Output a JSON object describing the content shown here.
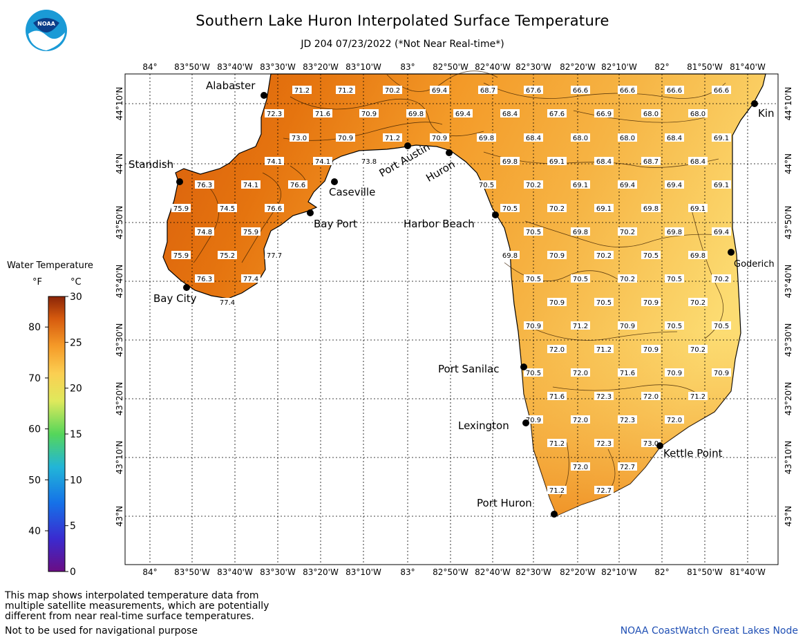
{
  "header": {
    "title": "Southern Lake Huron Interpolated Surface Temperature",
    "subtitle": "JD 204 07/23/2022 (*Not Near Real-time*)",
    "logo_text": "NOAA"
  },
  "legend": {
    "title": "Water Temperature",
    "unit_f": "°F",
    "unit_c": "°C",
    "f_ticks": [
      "80",
      "70",
      "60",
      "50",
      "40"
    ],
    "c_ticks": [
      "30",
      "25",
      "20",
      "15",
      "10",
      "5",
      "0"
    ],
    "range_c": [
      0,
      30
    ]
  },
  "axes": {
    "lon_labels": [
      "84°",
      "83°50'W",
      "83°40'W",
      "83°30'W",
      "83°20'W",
      "83°10'W",
      "83°",
      "82°50'W",
      "82°40'W",
      "82°30'W",
      "82°20'W",
      "82°10'W",
      "82°",
      "81°50'W",
      "81°40'W"
    ],
    "lat_labels": [
      "44°10'N",
      "44°N",
      "43°50'N",
      "43°40'N",
      "43°30'N",
      "43°20'N",
      "43°10'N",
      "43°N"
    ]
  },
  "places": [
    "Alabaster",
    "Standish",
    "Caseville",
    "Bay Port",
    "Bay City",
    "Port Austin",
    "Huron",
    "Harbor Beach",
    "Port Sanilac",
    "Lexington",
    "Port Huron",
    "Kettle Point",
    "Goderich",
    "Kin"
  ],
  "temperatures": [
    "71.2",
    "71.2",
    "70.2",
    "69.4",
    "68.7",
    "67.6",
    "66.6",
    "66.6",
    "66.6",
    "66.6",
    "72.3",
    "71.6",
    "70.9",
    "69.8",
    "69.4",
    "68.4",
    "67.6",
    "66.9",
    "68.0",
    "68.0",
    "73.0",
    "70.9",
    "71.2",
    "70.9",
    "69.8",
    "68.4",
    "68.0",
    "68.0",
    "68.4",
    "69.1",
    "74.1",
    "74.1",
    "73.8",
    "69.8",
    "69.1",
    "68.4",
    "68.7",
    "68.4",
    "76.3",
    "74.1",
    "76.6",
    "70.5",
    "70.2",
    "69.1",
    "69.4",
    "69.4",
    "69.1",
    "75.9",
    "74.5",
    "76.6",
    "70.5",
    "70.2",
    "69.1",
    "69.8",
    "69.1",
    "74.8",
    "75.9",
    "70.5",
    "69.8",
    "70.2",
    "69.8",
    "69.4",
    "75.9",
    "75.2",
    "77.7",
    "69.8",
    "70.9",
    "70.2",
    "70.5",
    "69.8",
    "76.3",
    "77.4",
    "70.5",
    "70.5",
    "70.2",
    "70.5",
    "70.2",
    "77.4",
    "70.9",
    "70.5",
    "70.9",
    "70.2",
    "70.9",
    "71.2",
    "70.9",
    "70.5",
    "70.5",
    "72.0",
    "71.2",
    "70.9",
    "70.2",
    "70.5",
    "72.0",
    "71.6",
    "70.9",
    "70.9",
    "71.6",
    "72.3",
    "72.0",
    "71.2",
    "70.9",
    "72.0",
    "72.3",
    "72.0",
    "71.2",
    "72.3",
    "73.0",
    "72.0",
    "72.7",
    "71.2",
    "72.7"
  ],
  "notes": {
    "line1": "This map shows interpolated temperature data from",
    "line2": "multiple satellite measurements, which are potentially",
    "line3": "different from near real-time surface temperatures.",
    "nav": "Not to be used for navigational purpose"
  },
  "credit": "NOAA CoastWatch Great Lakes Node",
  "colors": {
    "hot_water": "#e06a10",
    "warm_water": "#f29a28",
    "cool_water": "#fbd86a",
    "credit_text": "#1f4fb4"
  }
}
